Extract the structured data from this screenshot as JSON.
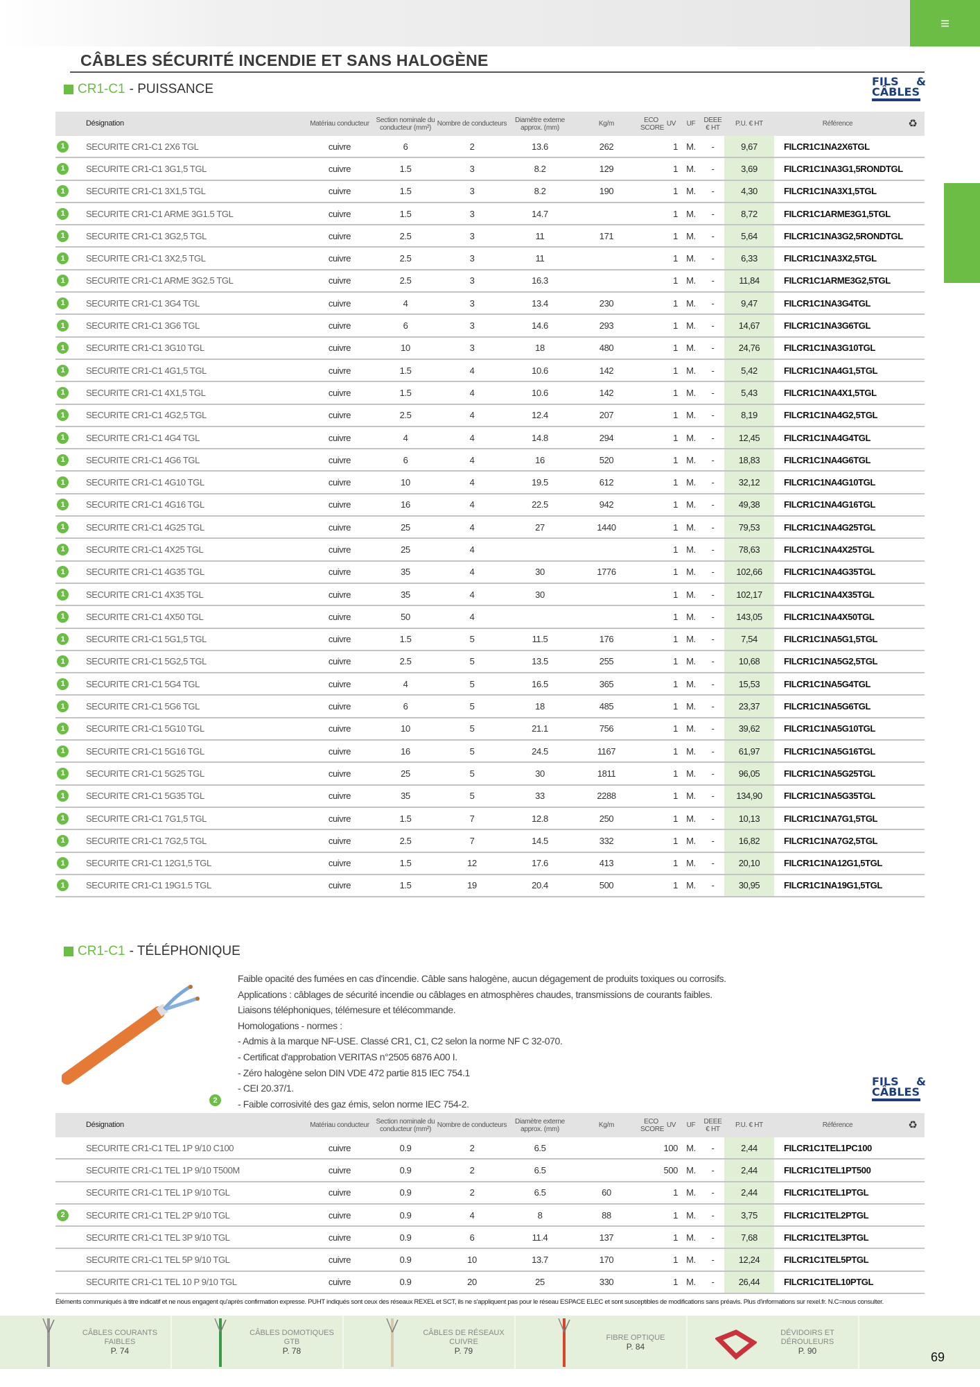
{
  "header": {
    "title": "CÂBLES SÉCURITÉ INCENDIE ET SANS HALOGÈNE",
    "logo_line1a": "FILS",
    "logo_line1b": "&",
    "logo_line2": "CÂBLES"
  },
  "colors": {
    "accent": "#6cbd45",
    "price_bg": "#e0efd6",
    "logo": "#1d3e7a"
  },
  "columns": [
    "Désignation",
    "Matériau conducteur",
    "Section nominale du conducteur (mm²)",
    "Nombre de conducteurs",
    "Diamètre externe approx. (mm)",
    "Kg/m",
    "ECO SCORE",
    "UV",
    "UF",
    "DEEE € HT",
    "P.U. € HT",
    "Référence"
  ],
  "recycle_icon": "recycle-icon",
  "puissance": {
    "code": "CR1-C1",
    "title": "- PUISSANCE",
    "rows": [
      [
        "1",
        "SECURITE CR1-C1 2X6 TGL",
        "cuivre",
        "6",
        "2",
        "13.6",
        "262",
        "",
        "1",
        "M.",
        "-",
        "9,67",
        "FILCR1C1NA2X6TGL"
      ],
      [
        "1",
        "SECURITE CR1-C1 3G1,5 TGL",
        "cuivre",
        "1.5",
        "3",
        "8.2",
        "129",
        "",
        "1",
        "M.",
        "-",
        "3,69",
        "FILCR1C1NA3G1,5RONDTGL"
      ],
      [
        "1",
        "SECURITE CR1-C1 3X1,5 TGL",
        "cuivre",
        "1.5",
        "3",
        "8.2",
        "190",
        "",
        "1",
        "M.",
        "-",
        "4,30",
        "FILCR1C1NA3X1,5TGL"
      ],
      [
        "1",
        "SECURITE CR1-C1 ARME 3G1.5 TGL",
        "cuivre",
        "1.5",
        "3",
        "14.7",
        "",
        "",
        "1",
        "M.",
        "-",
        "8,72",
        "FILCR1C1ARME3G1,5TGL"
      ],
      [
        "1",
        "SECURITE CR1-C1 3G2,5 TGL",
        "cuivre",
        "2.5",
        "3",
        "11",
        "171",
        "",
        "1",
        "M.",
        "-",
        "5,64",
        "FILCR1C1NA3G2,5RONDTGL"
      ],
      [
        "1",
        "SECURITE CR1-C1 3X2,5 TGL",
        "cuivre",
        "2.5",
        "3",
        "11",
        "",
        "",
        "1",
        "M.",
        "-",
        "6,33",
        "FILCR1C1NA3X2,5TGL"
      ],
      [
        "1",
        "SECURITE CR1-C1 ARME 3G2.5 TGL",
        "cuivre",
        "2.5",
        "3",
        "16.3",
        "",
        "",
        "1",
        "M.",
        "-",
        "11,84",
        "FILCR1C1ARME3G2,5TGL"
      ],
      [
        "1",
        "SECURITE CR1-C1 3G4 TGL",
        "cuivre",
        "4",
        "3",
        "13.4",
        "230",
        "",
        "1",
        "M.",
        "-",
        "9,47",
        "FILCR1C1NA3G4TGL"
      ],
      [
        "1",
        "SECURITE CR1-C1 3G6 TGL",
        "cuivre",
        "6",
        "3",
        "14.6",
        "293",
        "",
        "1",
        "M.",
        "-",
        "14,67",
        "FILCR1C1NA3G6TGL"
      ],
      [
        "1",
        "SECURITE CR1-C1 3G10 TGL",
        "cuivre",
        "10",
        "3",
        "18",
        "480",
        "",
        "1",
        "M.",
        "-",
        "24,76",
        "FILCR1C1NA3G10TGL"
      ],
      [
        "1",
        "SECURITE CR1-C1 4G1,5 TGL",
        "cuivre",
        "1.5",
        "4",
        "10.6",
        "142",
        "",
        "1",
        "M.",
        "-",
        "5,42",
        "FILCR1C1NA4G1,5TGL"
      ],
      [
        "1",
        "SECURITE CR1-C1 4X1,5 TGL",
        "cuivre",
        "1.5",
        "4",
        "10.6",
        "142",
        "",
        "1",
        "M.",
        "-",
        "5,43",
        "FILCR1C1NA4X1,5TGL"
      ],
      [
        "1",
        "SECURITE CR1-C1 4G2,5 TGL",
        "cuivre",
        "2.5",
        "4",
        "12.4",
        "207",
        "",
        "1",
        "M.",
        "-",
        "8,19",
        "FILCR1C1NA4G2,5TGL"
      ],
      [
        "1",
        "SECURITE CR1-C1 4G4 TGL",
        "cuivre",
        "4",
        "4",
        "14.8",
        "294",
        "",
        "1",
        "M.",
        "-",
        "12,45",
        "FILCR1C1NA4G4TGL"
      ],
      [
        "1",
        "SECURITE CR1-C1 4G6 TGL",
        "cuivre",
        "6",
        "4",
        "16",
        "520",
        "",
        "1",
        "M.",
        "-",
        "18,83",
        "FILCR1C1NA4G6TGL"
      ],
      [
        "1",
        "SECURITE CR1-C1 4G10 TGL",
        "cuivre",
        "10",
        "4",
        "19.5",
        "612",
        "",
        "1",
        "M.",
        "-",
        "32,12",
        "FILCR1C1NA4G10TGL"
      ],
      [
        "1",
        "SECURITE CR1-C1 4G16 TGL",
        "cuivre",
        "16",
        "4",
        "22.5",
        "942",
        "",
        "1",
        "M.",
        "-",
        "49,38",
        "FILCR1C1NA4G16TGL"
      ],
      [
        "1",
        "SECURITE CR1-C1 4G25 TGL",
        "cuivre",
        "25",
        "4",
        "27",
        "1440",
        "",
        "1",
        "M.",
        "-",
        "79,53",
        "FILCR1C1NA4G25TGL"
      ],
      [
        "1",
        "SECURITE CR1-C1 4X25 TGL",
        "cuivre",
        "25",
        "4",
        "",
        "",
        "",
        "1",
        "M.",
        "-",
        "78,63",
        "FILCR1C1NA4X25TGL"
      ],
      [
        "1",
        "SECURITE CR1-C1 4G35 TGL",
        "cuivre",
        "35",
        "4",
        "30",
        "1776",
        "",
        "1",
        "M.",
        "-",
        "102,66",
        "FILCR1C1NA4G35TGL"
      ],
      [
        "1",
        "SECURITE CR1-C1 4X35 TGL",
        "cuivre",
        "35",
        "4",
        "30",
        "",
        "",
        "1",
        "M.",
        "-",
        "102,17",
        "FILCR1C1NA4X35TGL"
      ],
      [
        "1",
        "SECURITE CR1-C1 4X50 TGL",
        "cuivre",
        "50",
        "4",
        "",
        "",
        "",
        "1",
        "M.",
        "-",
        "143,05",
        "FILCR1C1NA4X50TGL"
      ],
      [
        "1",
        "SECURITE CR1-C1 5G1,5 TGL",
        "cuivre",
        "1.5",
        "5",
        "11.5",
        "176",
        "",
        "1",
        "M.",
        "-",
        "7,54",
        "FILCR1C1NA5G1,5TGL"
      ],
      [
        "1",
        "SECURITE CR1-C1 5G2,5 TGL",
        "cuivre",
        "2.5",
        "5",
        "13.5",
        "255",
        "",
        "1",
        "M.",
        "-",
        "10,68",
        "FILCR1C1NA5G2,5TGL"
      ],
      [
        "1",
        "SECURITE CR1-C1 5G4 TGL",
        "cuivre",
        "4",
        "5",
        "16.5",
        "365",
        "",
        "1",
        "M.",
        "-",
        "15,53",
        "FILCR1C1NA5G4TGL"
      ],
      [
        "1",
        "SECURITE CR1-C1 5G6 TGL",
        "cuivre",
        "6",
        "5",
        "18",
        "485",
        "",
        "1",
        "M.",
        "-",
        "23,37",
        "FILCR1C1NA5G6TGL"
      ],
      [
        "1",
        "SECURITE CR1-C1 5G10 TGL",
        "cuivre",
        "10",
        "5",
        "21.1",
        "756",
        "",
        "1",
        "M.",
        "-",
        "39,62",
        "FILCR1C1NA5G10TGL"
      ],
      [
        "1",
        "SECURITE CR1-C1 5G16 TGL",
        "cuivre",
        "16",
        "5",
        "24.5",
        "1167",
        "",
        "1",
        "M.",
        "-",
        "61,97",
        "FILCR1C1NA5G16TGL"
      ],
      [
        "1",
        "SECURITE CR1-C1 5G25 TGL",
        "cuivre",
        "25",
        "5",
        "30",
        "1811",
        "",
        "1",
        "M.",
        "-",
        "96,05",
        "FILCR1C1NA5G25TGL"
      ],
      [
        "1",
        "SECURITE CR1-C1 5G35 TGL",
        "cuivre",
        "35",
        "5",
        "33",
        "2288",
        "",
        "1",
        "M.",
        "-",
        "134,90",
        "FILCR1C1NA5G35TGL"
      ],
      [
        "1",
        "SECURITE CR1-C1 7G1,5 TGL",
        "cuivre",
        "1.5",
        "7",
        "12.8",
        "250",
        "",
        "1",
        "M.",
        "-",
        "10,13",
        "FILCR1C1NA7G1,5TGL"
      ],
      [
        "1",
        "SECURITE CR1-C1 7G2,5 TGL",
        "cuivre",
        "2.5",
        "7",
        "14.5",
        "332",
        "",
        "1",
        "M.",
        "-",
        "16,82",
        "FILCR1C1NA7G2,5TGL"
      ],
      [
        "1",
        "SECURITE CR1-C1 12G1,5 TGL",
        "cuivre",
        "1.5",
        "12",
        "17.6",
        "413",
        "",
        "1",
        "M.",
        "-",
        "20,10",
        "FILCR1C1NA12G1,5TGL"
      ],
      [
        "1",
        "SECURITE CR1-C1 19G1.5 TGL",
        "cuivre",
        "1.5",
        "19",
        "20.4",
        "500",
        "",
        "1",
        "M.",
        "-",
        "30,95",
        "FILCR1C1NA19G1,5TGL"
      ]
    ]
  },
  "telephonique": {
    "code": "CR1-C1",
    "title": "- TÉLÉPHONIQUE",
    "badge": "2",
    "description": [
      "Faible opacité des fumées en cas d'incendie. Câble sans halogène, aucun dégagement de produits toxiques ou corrosifs.",
      "Applications : câblages de sécurité incendie ou câblages en atmosphères chaudes, transmissions de courants faibles.",
      "Liaisons téléphoniques, télémesure et télécommande.",
      "Homologations - normes :",
      "- Admis à la marque NF-USE. Classé CR1, C1, C2 selon la norme NF C 32-070.",
      "- Certificat d'approbation VERITAS n°2505 6876 A00 I.",
      "- Zéro halogène selon DIN VDE 472 partie 815 IEC 754.1",
      "- CEI 20.37/1.",
      "- Faible corrosivité des gaz émis, selon norme IEC 754-2."
    ],
    "rows": [
      [
        "",
        "SECURITE CR1-C1 TEL 1P 9/10 C100",
        "cuivre",
        "0.9",
        "2",
        "6.5",
        "",
        "",
        "100",
        "M.",
        "-",
        "2,44",
        "FILCR1C1TEL1PC100"
      ],
      [
        "",
        "SECURITE CR1-C1 TEL 1P 9/10 T500M",
        "cuivre",
        "0.9",
        "2",
        "6.5",
        "",
        "",
        "500",
        "M.",
        "-",
        "2,44",
        "FILCR1C1TEL1PT500"
      ],
      [
        "",
        "SECURITE CR1-C1 TEL 1P 9/10 TGL",
        "cuivre",
        "0.9",
        "2",
        "6.5",
        "60",
        "",
        "1",
        "M.",
        "-",
        "2,44",
        "FILCR1C1TEL1PTGL"
      ],
      [
        "2",
        "SECURITE CR1-C1 TEL 2P 9/10 TGL",
        "cuivre",
        "0.9",
        "4",
        "8",
        "88",
        "",
        "1",
        "M.",
        "-",
        "3,75",
        "FILCR1C1TEL2PTGL"
      ],
      [
        "",
        "SECURITE CR1-C1 TEL 3P 9/10 TGL",
        "cuivre",
        "0.9",
        "6",
        "11.4",
        "137",
        "",
        "1",
        "M.",
        "-",
        "7,68",
        "FILCR1C1TEL3PTGL"
      ],
      [
        "",
        "SECURITE CR1-C1 TEL 5P 9/10 TGL",
        "cuivre",
        "0.9",
        "10",
        "13.7",
        "170",
        "",
        "1",
        "M.",
        "-",
        "12,24",
        "FILCR1C1TEL5PTGL"
      ],
      [
        "",
        "SECURITE CR1-C1 TEL 10 P 9/10 TGL",
        "cuivre",
        "0.9",
        "20",
        "25",
        "330",
        "",
        "1",
        "M.",
        "-",
        "26,44",
        "FILCR1C1TEL10PTGL"
      ]
    ]
  },
  "disclaimer": "Éléments communiqués à titre indicatif et ne nous engagent qu'après confirmation expresse. PUHT indiqués sont ceux des réseaux REXEL et SCT, ils ne s'appliquent pas pour le réseau ESPACE ELEC et sont susceptibles de modifications sans préavis. Plus d'informations sur rexel.fr. N.C=nous consulter.",
  "footer": [
    {
      "label": "CÂBLES COURANTS FAIBLES",
      "page": "P. 74",
      "color": "#999"
    },
    {
      "label": "CÂBLES DOMOTIQUES GTB",
      "page": "P. 78",
      "color": "#3a9a4a"
    },
    {
      "label": "CÂBLES DE RÉSEAUX CUIVRE",
      "page": "P. 79",
      "color": "#d8c8b0"
    },
    {
      "label": "FIBRE OPTIQUE",
      "page": "P. 84",
      "color": "#d8452a"
    },
    {
      "label": "DÉVIDOIRS ET DÉROULEURS",
      "page": "P. 90",
      "color": "#c8323a"
    }
  ],
  "page_number": "69"
}
